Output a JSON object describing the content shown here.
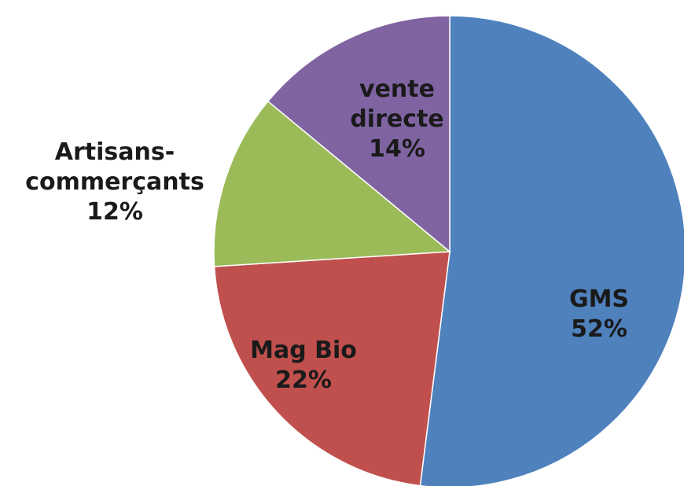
{
  "chart_data": {
    "type": "pie",
    "categories": [
      "GMS",
      "Mag Bio",
      "Artisans-commerçants",
      "vente directe"
    ],
    "values": [
      52,
      22,
      12,
      14
    ],
    "value_labels": [
      "52%",
      "22%",
      "12%",
      "14%"
    ],
    "colors": [
      "#4f81bd",
      "#c0504d",
      "#9bbb59",
      "#8064a2"
    ]
  }
}
